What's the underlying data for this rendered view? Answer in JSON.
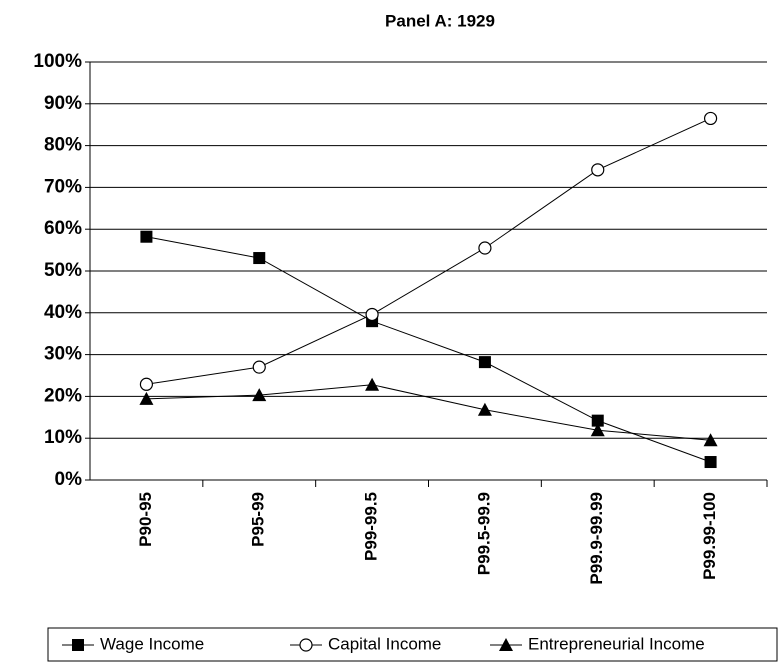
{
  "chart_data": {
    "type": "line",
    "title": "Panel A: 1929",
    "categories": [
      "P90-95",
      "P95-99",
      "P99-99.5",
      "P99.5-99.9",
      "P99.9-99.99",
      "P99.99-100"
    ],
    "series": [
      {
        "name": "Wage Income",
        "color": "#000000",
        "marker": "square",
        "values": [
          58.2,
          53.1,
          38,
          28.2,
          14.2,
          4.3
        ]
      },
      {
        "name": "Capital Income",
        "color": "#000000",
        "marker": "circle",
        "values": [
          22.9,
          27,
          39.6,
          55.5,
          74.2,
          86.5
        ]
      },
      {
        "name": "Entrepreneurial Income",
        "color": "#000000",
        "marker": "triangle",
        "values": [
          19.4,
          20.3,
          22.8,
          16.8,
          11.9,
          9.5
        ]
      }
    ],
    "ylim": [
      0,
      100
    ],
    "yticks": [
      {
        "value": 0,
        "label": "0%"
      },
      {
        "value": 10,
        "label": "10%"
      },
      {
        "value": 20,
        "label": "20%"
      },
      {
        "value": 30,
        "label": "30%"
      },
      {
        "value": 40,
        "label": "40%"
      },
      {
        "value": 50,
        "label": "50%"
      },
      {
        "value": 60,
        "label": "60%"
      },
      {
        "value": 70,
        "label": "70%"
      },
      {
        "value": 80,
        "label": "80%"
      },
      {
        "value": 90,
        "label": "90%"
      },
      {
        "value": 100,
        "label": "100%"
      }
    ],
    "grid": true,
    "legend": "bottom"
  }
}
